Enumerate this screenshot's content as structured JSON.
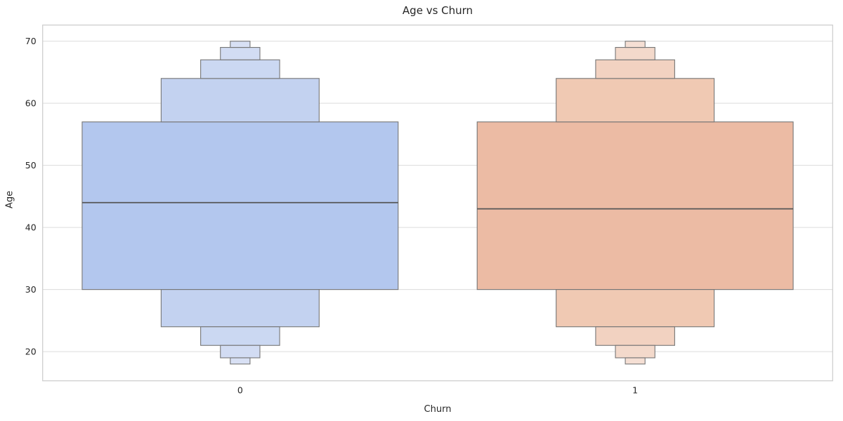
{
  "chart_data": {
    "type": "boxen",
    "title": "Age vs Churn",
    "xlabel": "Churn",
    "ylabel": "Age",
    "categories": [
      "0",
      "1"
    ],
    "ylim": [
      15.3,
      72.6
    ],
    "yticks": [
      20,
      30,
      40,
      50,
      60,
      70
    ],
    "grid": true,
    "legend": "none",
    "box_width_fraction": 0.8,
    "series": [
      {
        "category": "0",
        "median": 44,
        "boxes": [
          {
            "lo": 30,
            "hi": 57,
            "width": 1
          },
          {
            "lo": 24,
            "hi": 30,
            "width": 0.5
          },
          {
            "lo": 57,
            "hi": 64,
            "width": 0.5
          },
          {
            "lo": 21,
            "hi": 24,
            "width": 0.25
          },
          {
            "lo": 64,
            "hi": 67,
            "width": 0.25
          },
          {
            "lo": 19,
            "hi": 21,
            "width": 0.125
          },
          {
            "lo": 67,
            "hi": 69,
            "width": 0.125
          },
          {
            "lo": 18,
            "hi": 19,
            "width": 0.0625
          },
          {
            "lo": 69,
            "hi": 70,
            "width": 0.0625
          }
        ],
        "level_colors": [
          "#b3c7ee",
          "#c3d2f0",
          "#cbd8f2",
          "#d2dcf3",
          "#d8e0f4"
        ]
      },
      {
        "category": "1",
        "median": 43,
        "boxes": [
          {
            "lo": 30,
            "hi": 57,
            "width": 1
          },
          {
            "lo": 24,
            "hi": 30,
            "width": 0.5
          },
          {
            "lo": 57,
            "hi": 64,
            "width": 0.5
          },
          {
            "lo": 21,
            "hi": 24,
            "width": 0.25
          },
          {
            "lo": 64,
            "hi": 67,
            "width": 0.25
          },
          {
            "lo": 19,
            "hi": 21,
            "width": 0.125
          },
          {
            "lo": 67,
            "hi": 69,
            "width": 0.125
          },
          {
            "lo": 18,
            "hi": 19,
            "width": 0.0625
          },
          {
            "lo": 69,
            "hi": 70,
            "width": 0.0625
          }
        ],
        "level_colors": [
          "#ecbba4",
          "#f0c9b3",
          "#f2d2c1",
          "#f3d9cb",
          "#f5dfd4"
        ]
      }
    ],
    "box_edge_color": "#767676",
    "median_color": "#565656",
    "grid_color": "#dcdcdc",
    "frame_color": "#cfcfcf",
    "text_color": "#262626"
  }
}
